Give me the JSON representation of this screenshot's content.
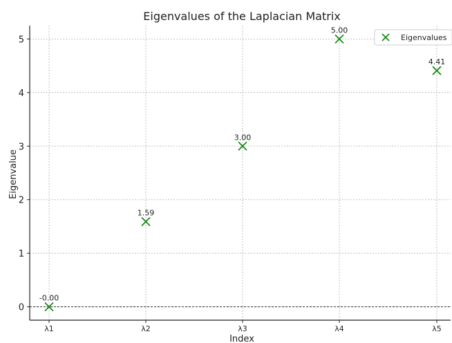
{
  "chart_data": {
    "type": "scatter",
    "title": "Eigenvalues of the Laplacian Matrix",
    "xlabel": "Index",
    "ylabel": "Eigenvalue",
    "categories": [
      "λ1",
      "λ2",
      "λ3",
      "λ4",
      "λ5"
    ],
    "series": [
      {
        "name": "Eigenvalues",
        "values": [
          0.0,
          1.59,
          3.0,
          5.0,
          4.41
        ],
        "labels": [
          "-0.00",
          "1.59",
          "3.00",
          "5.00",
          "4.41"
        ],
        "marker": "x",
        "color": "#1a8a1a"
      }
    ],
    "ylim": [
      -0.25,
      5.25
    ],
    "yticks": [
      0,
      1,
      2,
      3,
      4,
      5
    ],
    "grid": true,
    "legend": "top-right",
    "reference_line": {
      "y": 0,
      "style": "dashed"
    }
  }
}
